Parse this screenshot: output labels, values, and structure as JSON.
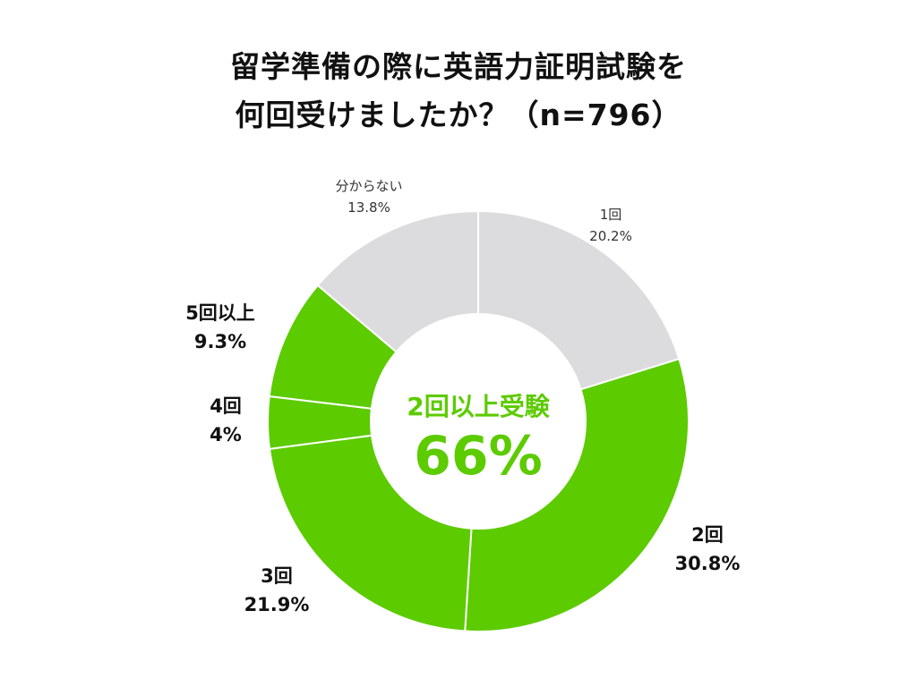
{
  "chart_data": {
    "type": "pie",
    "title": "留学準備の際に英語力証明試験を",
    "subtitle": "何回受けましたか？（n=796）",
    "categories": [
      "1回",
      "2回",
      "3回",
      "4回",
      "5回以上",
      "分からない"
    ],
    "values": [
      20.2,
      30.8,
      21.9,
      4,
      9.3,
      13.8
    ],
    "value_labels": [
      "20.2%",
      "30.8%",
      "21.9%",
      "4%",
      "9.3%",
      "13.8%"
    ],
    "colors": [
      "#dcdcde",
      "#5ccb00",
      "#5ccb00",
      "#5ccb00",
      "#5ccb00",
      "#dcdcde"
    ],
    "hole": true,
    "center_label": "2回以上受験",
    "center_value": "66%",
    "center_color": "#5ccb00",
    "legend": "none"
  }
}
